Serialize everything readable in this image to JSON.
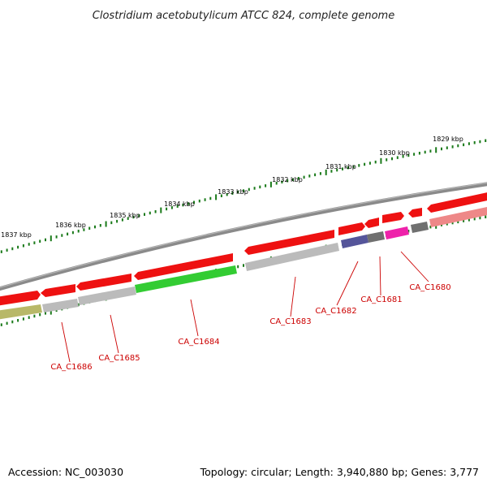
{
  "title": "Clostridium acetobutylicum ATCC 824, complete genome",
  "footer": {
    "accession": "Accession: NC_003030",
    "summary": "Topology: circular; Length: 3,940,880 bp; Genes: 3,777"
  },
  "colors": {
    "backbone": "#808080",
    "gene_red": "#ee1111",
    "tick_green": "#1a7a1a",
    "label_red": "#cc0000",
    "green_feature": "#33cc33",
    "gray_feature": "#bbbbbb",
    "olive_feature": "#b8b868",
    "purple_feature": "#55559a",
    "magenta_feature": "#ee22aa",
    "darkgray_feature": "#707070",
    "pink_feature": "#ee8888"
  },
  "kbp_labels": [
    "1837 kbp",
    "1836 kbp",
    "1835 kbp",
    "1834 kbp",
    "1833 kbp",
    "1832 kbp",
    "1831 kbp",
    "1830 kbp",
    "1829 kbp"
  ],
  "gene_labels": [
    "CA_C1686",
    "CA_C1685",
    "CA_C1684",
    "CA_C1683",
    "CA_C1682",
    "CA_C1681",
    "CA_C1680"
  ]
}
